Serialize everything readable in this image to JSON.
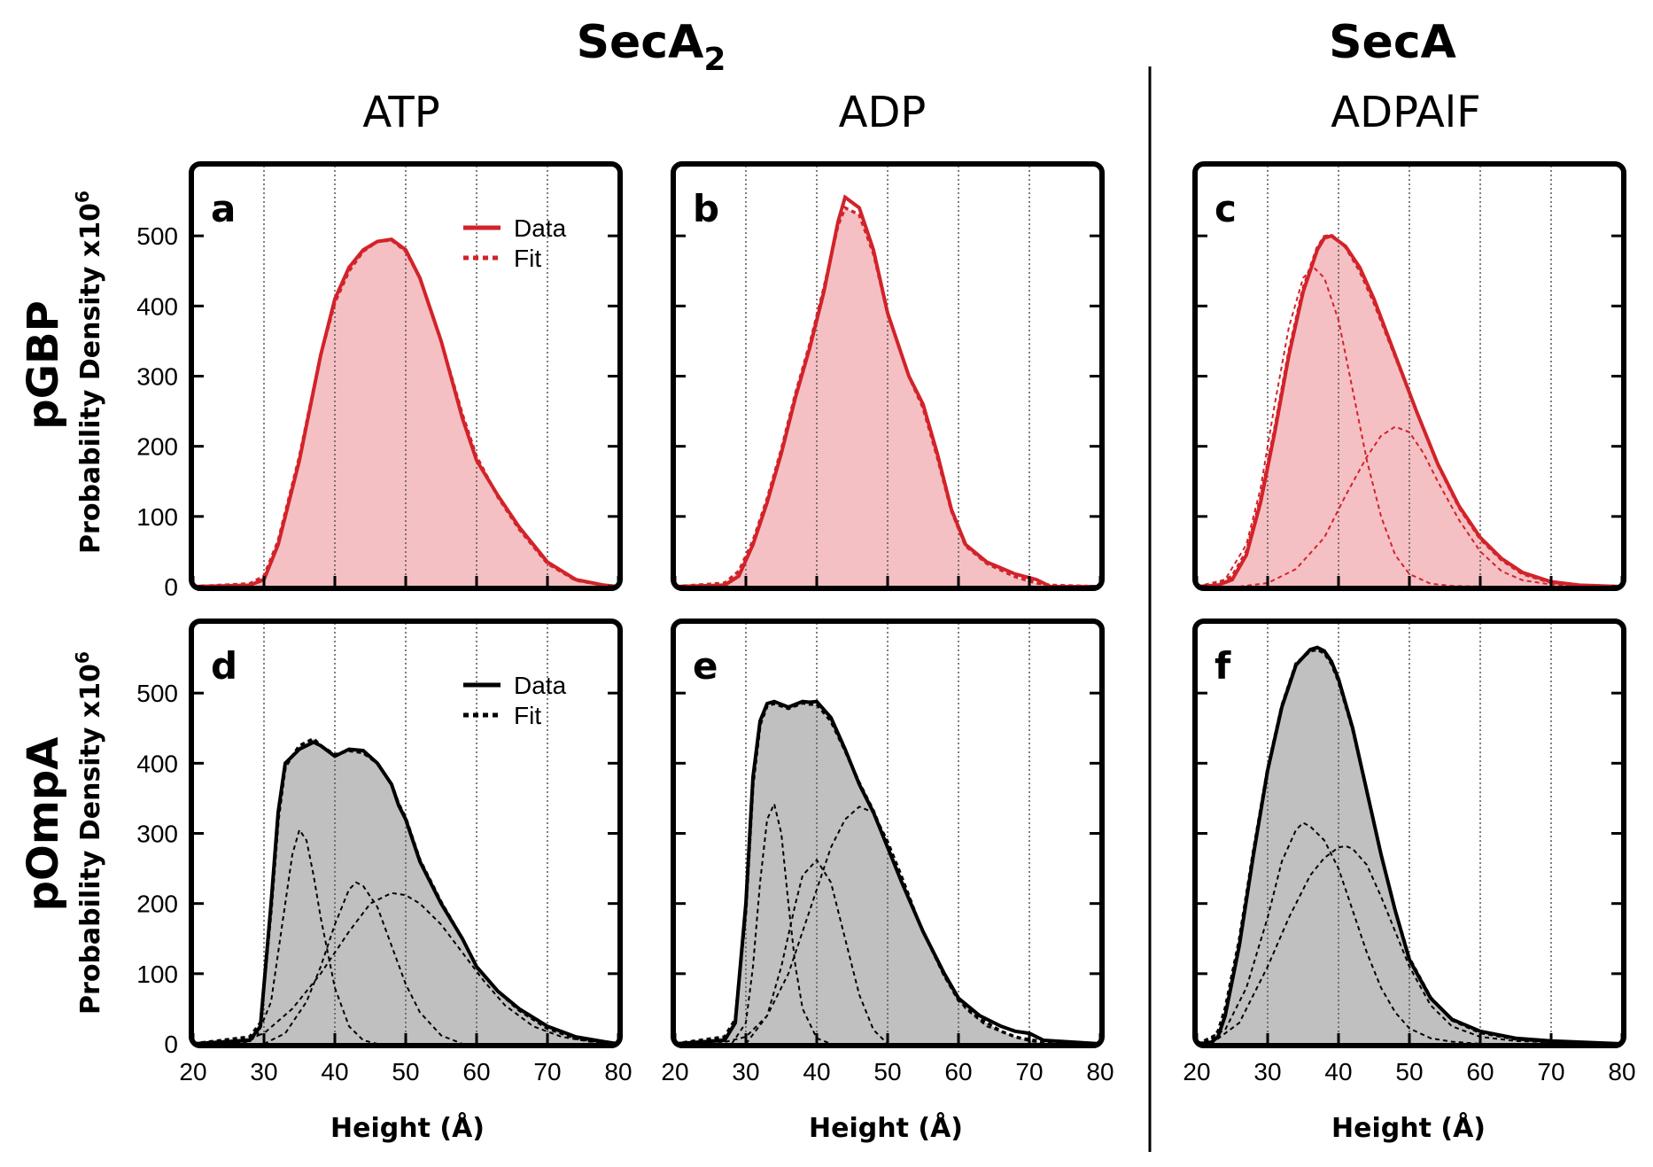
{
  "figure": {
    "group_titles": [
      {
        "main": "SecA",
        "subscript": "2"
      },
      {
        "main": "SecA",
        "subscript": ""
      }
    ],
    "conditions": [
      "ATP",
      "ADP",
      "ADPAlF"
    ],
    "row_labels": [
      "pGBP",
      "pOmpA"
    ],
    "ylabel": "Probability Density x10",
    "ylabel_exp": "6",
    "xlabel": "Height (Å)",
    "colors": {
      "pGBP": "#d2232a",
      "pGBP_fill": "#f5c0c3",
      "pOmpA": "#000000",
      "pOmpA_fill": "#c0c0c0",
      "grid": "#555555"
    }
  },
  "chart_data": [
    {
      "type": "area",
      "panel": "a",
      "row": "pGBP",
      "condition": "ATP",
      "xlim": [
        20,
        80
      ],
      "ylim": [
        0,
        600
      ],
      "xticks": [
        20,
        30,
        40,
        50,
        60,
        70,
        80
      ],
      "yticks": [
        0,
        100,
        200,
        300,
        400,
        500
      ],
      "legend": [
        "Data",
        "Fit"
      ],
      "legend_position": "top-right",
      "data": {
        "name": "Data",
        "x": [
          20,
          28,
          30,
          32,
          35,
          38,
          40,
          42,
          44,
          46,
          48,
          50,
          52,
          55,
          58,
          60,
          63,
          66,
          70,
          74,
          78,
          80
        ],
        "y": [
          0,
          2,
          10,
          60,
          180,
          330,
          410,
          455,
          480,
          492,
          495,
          480,
          440,
          350,
          240,
          180,
          130,
          85,
          35,
          10,
          2,
          0
        ]
      },
      "fit": {
        "name": "Fit",
        "x": [
          20,
          28,
          30,
          32,
          35,
          38,
          40,
          42,
          44,
          46,
          48,
          50,
          52,
          55,
          58,
          60,
          63,
          66,
          70,
          74,
          78,
          80
        ],
        "y": [
          0,
          4,
          15,
          65,
          185,
          330,
          405,
          450,
          478,
          492,
          494,
          478,
          440,
          350,
          245,
          185,
          128,
          82,
          33,
          9,
          2,
          0
        ]
      },
      "components": []
    },
    {
      "type": "area",
      "panel": "b",
      "row": "pGBP",
      "condition": "ADP",
      "xlim": [
        20,
        80
      ],
      "ylim": [
        0,
        600
      ],
      "xticks": [
        20,
        30,
        40,
        50,
        60,
        70,
        80
      ],
      "yticks": [
        0,
        100,
        200,
        300,
        400,
        500
      ],
      "legend": [],
      "legend_position": "",
      "data": {
        "name": "Data",
        "x": [
          20,
          27,
          29,
          31,
          33,
          35,
          37,
          39,
          41,
          43,
          44,
          46,
          48,
          50,
          53,
          55,
          57,
          59,
          61,
          64,
          68,
          71,
          73,
          80
        ],
        "y": [
          0,
          2,
          15,
          60,
          120,
          190,
          270,
          340,
          420,
          520,
          555,
          540,
          480,
          390,
          300,
          260,
          190,
          110,
          60,
          35,
          18,
          10,
          0,
          0
        ]
      },
      "fit": {
        "name": "Fit",
        "x": [
          20,
          27,
          29,
          31,
          33,
          35,
          37,
          39,
          41,
          43,
          44,
          46,
          48,
          50,
          53,
          55,
          57,
          59,
          61,
          64,
          68,
          71,
          73,
          80
        ],
        "y": [
          0,
          5,
          22,
          65,
          125,
          195,
          275,
          345,
          425,
          515,
          540,
          530,
          475,
          390,
          300,
          255,
          185,
          108,
          58,
          33,
          14,
          5,
          2,
          0
        ]
      },
      "components": []
    },
    {
      "type": "area",
      "panel": "c",
      "row": "pGBP",
      "condition": "ADPAlF",
      "xlim": [
        20,
        80
      ],
      "ylim": [
        0,
        600
      ],
      "xticks": [
        20,
        30,
        40,
        50,
        60,
        70,
        80
      ],
      "yticks": [
        0,
        100,
        200,
        300,
        400,
        500
      ],
      "legend": [],
      "legend_position": "",
      "data": {
        "name": "Data",
        "x": [
          20,
          23,
          25,
          27,
          29,
          31,
          33,
          35,
          37,
          38,
          39,
          41,
          43,
          45,
          48,
          51,
          54,
          57,
          60,
          63,
          66,
          70,
          74,
          80
        ],
        "y": [
          0,
          2,
          10,
          45,
          120,
          220,
          330,
          420,
          480,
          497,
          500,
          485,
          455,
          410,
          330,
          250,
          175,
          115,
          70,
          40,
          20,
          7,
          2,
          0
        ]
      },
      "fit": {
        "name": "Fit",
        "x": [
          20,
          23,
          25,
          27,
          29,
          31,
          33,
          35,
          37,
          38,
          39,
          41,
          43,
          45,
          48,
          51,
          54,
          57,
          60,
          63,
          66,
          70,
          74,
          80
        ],
        "y": [
          0,
          4,
          15,
          50,
          125,
          225,
          335,
          425,
          483,
          499,
          501,
          484,
          450,
          405,
          328,
          250,
          174,
          113,
          68,
          38,
          18,
          6,
          2,
          0
        ]
      },
      "components": [
        {
          "name": "Fit component 1",
          "x": [
            20,
            24,
            27,
            29,
            31,
            33,
            35,
            36.5,
            38,
            40,
            42,
            44,
            46,
            48,
            50,
            53,
            56,
            60
          ],
          "y": [
            0,
            10,
            60,
            140,
            260,
            370,
            440,
            455,
            440,
            380,
            280,
            180,
            100,
            45,
            18,
            4,
            1,
            0
          ]
        },
        {
          "name": "Fit component 2",
          "x": [
            26,
            30,
            34,
            38,
            41,
            44,
            46,
            48,
            50,
            52,
            54,
            57,
            60,
            63,
            66,
            70,
            75,
            80
          ],
          "y": [
            0,
            5,
            25,
            70,
            130,
            185,
            215,
            228,
            220,
            190,
            150,
            95,
            50,
            22,
            9,
            3,
            1,
            0
          ]
        }
      ]
    },
    {
      "type": "area",
      "panel": "d",
      "row": "pOmpA",
      "condition": "ATP",
      "xlim": [
        20,
        80
      ],
      "ylim": [
        0,
        600
      ],
      "xticks": [
        20,
        30,
        40,
        50,
        60,
        70,
        80
      ],
      "yticks": [
        0,
        100,
        200,
        300,
        400,
        500
      ],
      "legend": [
        "Data",
        "Fit"
      ],
      "legend_position": "top-right",
      "data": {
        "name": "Data",
        "x": [
          20,
          28,
          29.5,
          31,
          32,
          33,
          35,
          37,
          38,
          40,
          42,
          44,
          46,
          48,
          49,
          50,
          52,
          55,
          58,
          60,
          63,
          66,
          70,
          74,
          78,
          80
        ],
        "y": [
          0,
          5,
          25,
          200,
          330,
          400,
          420,
          430,
          425,
          410,
          420,
          418,
          400,
          370,
          340,
          320,
          260,
          200,
          150,
          110,
          75,
          50,
          25,
          10,
          3,
          0
        ]
      },
      "fit": {
        "name": "Fit",
        "x": [
          20,
          28,
          29.5,
          31,
          32,
          33,
          35,
          37,
          38,
          40,
          42,
          44,
          46,
          48,
          49,
          50,
          52,
          55,
          58,
          60,
          63,
          66,
          70,
          74,
          78,
          80
        ],
        "y": [
          0,
          10,
          30,
          190,
          320,
          395,
          425,
          435,
          425,
          412,
          418,
          415,
          400,
          370,
          342,
          322,
          262,
          202,
          150,
          110,
          75,
          48,
          22,
          8,
          2,
          0
        ]
      },
      "components": [
        {
          "name": "Fit component 1",
          "x": [
            27,
            29,
            31,
            33,
            34,
            35,
            36,
            37,
            38,
            40,
            42,
            44,
            46
          ],
          "y": [
            0,
            10,
            60,
            200,
            270,
            305,
            290,
            240,
            180,
            80,
            25,
            5,
            0
          ]
        },
        {
          "name": "Fit component 2",
          "x": [
            30,
            33,
            36,
            38,
            40,
            42,
            43,
            44,
            46,
            48,
            50,
            52,
            55,
            58
          ],
          "y": [
            0,
            15,
            60,
            110,
            170,
            220,
            230,
            225,
            195,
            140,
            85,
            45,
            12,
            0
          ]
        },
        {
          "name": "Fit component 3",
          "x": [
            26,
            30,
            34,
            38,
            42,
            45,
            48,
            50,
            52,
            55,
            58,
            61,
            64,
            68,
            72,
            76,
            80
          ],
          "y": [
            0,
            15,
            50,
            100,
            160,
            200,
            215,
            212,
            200,
            170,
            130,
            90,
            55,
            25,
            10,
            3,
            0
          ]
        }
      ]
    },
    {
      "type": "area",
      "panel": "e",
      "row": "pOmpA",
      "condition": "ADP",
      "xlim": [
        20,
        80
      ],
      "ylim": [
        0,
        600
      ],
      "xticks": [
        20,
        30,
        40,
        50,
        60,
        70,
        80
      ],
      "yticks": [
        0,
        100,
        200,
        300,
        400,
        500
      ],
      "legend": [],
      "legend_position": "",
      "data": {
        "name": "Data",
        "x": [
          20,
          27,
          28.5,
          30,
          31,
          32,
          33,
          34,
          36,
          38,
          39,
          40,
          42,
          44,
          46,
          48,
          50,
          52,
          55,
          58,
          60,
          63,
          66,
          68,
          70,
          72,
          80
        ],
        "y": [
          0,
          5,
          30,
          200,
          380,
          460,
          485,
          488,
          480,
          488,
          487,
          488,
          465,
          420,
          370,
          330,
          280,
          230,
          160,
          100,
          65,
          40,
          25,
          18,
          15,
          5,
          0
        ]
      },
      "fit": {
        "name": "Fit",
        "x": [
          20,
          27,
          28.5,
          30,
          31,
          32,
          33,
          34,
          36,
          38,
          39,
          40,
          42,
          44,
          46,
          48,
          50,
          52,
          55,
          58,
          60,
          63,
          66,
          68,
          70,
          72,
          80
        ],
        "y": [
          0,
          10,
          35,
          190,
          370,
          455,
          482,
          485,
          478,
          486,
          484,
          484,
          460,
          418,
          372,
          332,
          282,
          232,
          160,
          98,
          62,
          36,
          18,
          10,
          5,
          2,
          0
        ]
      },
      "components": [
        {
          "name": "Fit component 1",
          "x": [
            28,
            30,
            31,
            32,
            33,
            34,
            35,
            36,
            37,
            38,
            40,
            42
          ],
          "y": [
            0,
            30,
            110,
            230,
            320,
            342,
            300,
            200,
            110,
            50,
            8,
            0
          ]
        },
        {
          "name": "Fit component 2",
          "x": [
            30,
            33,
            35,
            37,
            38,
            40,
            42,
            44,
            46,
            48,
            50
          ],
          "y": [
            0,
            40,
            110,
            200,
            240,
            262,
            230,
            150,
            70,
            20,
            0
          ]
        },
        {
          "name": "Fit component 3",
          "x": [
            26,
            30,
            33,
            36,
            39,
            42,
            44,
            46,
            48,
            50,
            52,
            55,
            58,
            61,
            64,
            68,
            72,
            76,
            80
          ],
          "y": [
            0,
            10,
            40,
            100,
            190,
            280,
            320,
            338,
            330,
            290,
            240,
            160,
            95,
            50,
            25,
            10,
            4,
            1,
            0
          ]
        }
      ]
    },
    {
      "type": "area",
      "panel": "f",
      "row": "pOmpA",
      "condition": "ADPAlF",
      "xlim": [
        20,
        80
      ],
      "ylim": [
        0,
        600
      ],
      "xticks": [
        20,
        30,
        40,
        50,
        60,
        70,
        80
      ],
      "yticks": [
        0,
        100,
        200,
        300,
        400,
        500
      ],
      "legend": [],
      "legend_position": "",
      "data": {
        "name": "Data",
        "x": [
          20,
          22,
          23,
          24,
          26,
          28,
          30,
          32,
          34,
          36,
          37,
          38,
          39,
          40,
          42,
          44,
          46,
          48,
          50,
          53,
          56,
          60,
          65,
          70,
          75,
          80
        ],
        "y": [
          0,
          2,
          10,
          40,
          140,
          270,
          390,
          480,
          540,
          562,
          565,
          560,
          545,
          520,
          450,
          360,
          270,
          190,
          120,
          65,
          35,
          18,
          8,
          4,
          2,
          0
        ]
      },
      "fit": {
        "name": "Fit",
        "x": [
          20,
          22,
          23,
          24,
          26,
          28,
          30,
          32,
          34,
          36,
          37,
          38,
          39,
          40,
          42,
          44,
          46,
          48,
          50,
          53,
          56,
          60,
          65,
          70,
          75,
          80
        ],
        "y": [
          0,
          5,
          18,
          50,
          148,
          275,
          392,
          482,
          542,
          560,
          562,
          557,
          542,
          517,
          448,
          360,
          270,
          190,
          122,
          66,
          34,
          16,
          7,
          3,
          1,
          0
        ]
      },
      "components": [
        {
          "name": "Fit component 1",
          "x": [
            20,
            24,
            27,
            30,
            32,
            34,
            35,
            36,
            38,
            40,
            42,
            44,
            46,
            48,
            50,
            53,
            56,
            60
          ],
          "y": [
            0,
            20,
            80,
            180,
            260,
            305,
            315,
            310,
            290,
            250,
            190,
            130,
            80,
            45,
            22,
            8,
            3,
            0
          ]
        },
        {
          "name": "Fit component 2",
          "x": [
            22,
            26,
            30,
            33,
            36,
            38,
            40,
            41,
            42,
            44,
            46,
            48,
            50,
            53,
            56,
            60,
            65,
            70,
            75,
            80
          ],
          "y": [
            0,
            30,
            110,
            180,
            240,
            265,
            280,
            282,
            278,
            255,
            210,
            160,
            110,
            55,
            25,
            10,
            4,
            2,
            1,
            0
          ]
        }
      ]
    }
  ]
}
